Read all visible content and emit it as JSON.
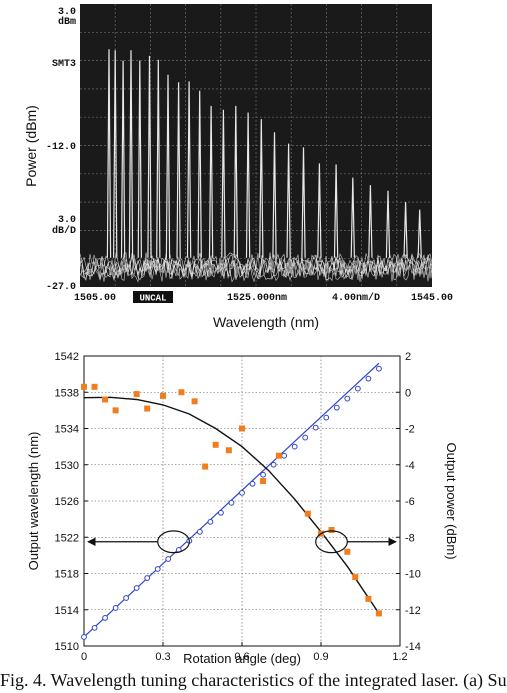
{
  "chart_data": [
    {
      "type": "line",
      "title": "",
      "ylabel": "Power (dBm)",
      "xlabel": "Wavelength (nm)",
      "y_ticks": [
        "dBm",
        "SMT3",
        "-12.0",
        "3.0",
        "dB/D",
        "-27.0"
      ],
      "y_top_label": "3.0",
      "xlim": [
        1505.0,
        1545.0
      ],
      "ylim": [
        -27.0,
        3.0
      ],
      "x_tick_labels": [
        "1505.00",
        "UNCAL",
        "1525.000nm",
        "4.00nm/D",
        "1545.00"
      ],
      "grid": true,
      "background": "#1a1a1a",
      "trace_color": "#e8e8e8",
      "grid_color": "#6a6a6a",
      "noise_floor_dbm": -24.5,
      "series": [
        {
          "values_x": [
            1508.3,
            1509.0,
            1509.9,
            1510.8,
            1511.8,
            1512.9,
            1513.9,
            1515.0,
            1516.2,
            1517.4,
            1518.6,
            1519.9,
            1521.3,
            1522.7,
            1524.1,
            1525.6,
            1527.1,
            1528.7,
            1530.4,
            1532.2,
            1534.1,
            1536.0,
            1538.0,
            1540.0,
            1542.0,
            1543.6
          ],
          "values_y": [
            -1.8,
            -1.9,
            -3.0,
            -1.9,
            -3.0,
            -2.5,
            -2.9,
            -4.5,
            -5.3,
            -5.2,
            -6.2,
            -7.8,
            -8.2,
            -7.8,
            -8.5,
            -9.2,
            -10.6,
            -11.8,
            -12.2,
            -13.9,
            -14.0,
            -15.4,
            -16.2,
            -16.8,
            -18.0,
            -18.8
          ]
        }
      ]
    },
    {
      "type": "scatter",
      "title": "",
      "xlabel": "Rotation angle (deg)",
      "ylabel": "Output wavelength (nm)",
      "y2label": "Output power (dBm)",
      "xlim": [
        0,
        1.2
      ],
      "ylim": [
        1510,
        1542
      ],
      "y2lim": [
        -14,
        2
      ],
      "x_ticks": [
        "0",
        "0.3",
        "0.6",
        "0.9",
        "1.2"
      ],
      "y_ticks": [
        "1510",
        "1514",
        "1518",
        "1522",
        "1526",
        "1530",
        "1534",
        "1538",
        "1542"
      ],
      "y2_ticks": [
        "2",
        "0",
        "-2",
        "-4",
        "-6",
        "-8",
        "-10",
        "-12",
        "-14"
      ],
      "grid": true,
      "wavelength_color": "#2e46c8",
      "power_color": "#f07d1e",
      "fit_color": "#111111",
      "wavelength_points": {
        "x": [
          0,
          0.04,
          0.08,
          0.12,
          0.16,
          0.2,
          0.24,
          0.28,
          0.32,
          0.36,
          0.4,
          0.44,
          0.48,
          0.52,
          0.56,
          0.6,
          0.64,
          0.68,
          0.72,
          0.76,
          0.8,
          0.84,
          0.88,
          0.92,
          0.96,
          1.0,
          1.04,
          1.08,
          1.12
        ],
        "y": [
          1511.0,
          1512.0,
          1513.1,
          1514.2,
          1515.3,
          1516.4,
          1517.5,
          1518.5,
          1519.6,
          1520.6,
          1521.6,
          1522.6,
          1523.7,
          1524.7,
          1525.8,
          1526.9,
          1527.9,
          1528.9,
          1530.0,
          1531.0,
          1532.0,
          1533.0,
          1534.1,
          1535.2,
          1536.3,
          1537.3,
          1538.4,
          1539.5,
          1540.6
        ]
      },
      "wavelength_fit": {
        "x": [
          0,
          1.12
        ],
        "y": [
          1511.0,
          1541.2
        ]
      },
      "power_points": {
        "x": [
          0,
          0.04,
          0.08,
          0.12,
          0.2,
          0.24,
          0.3,
          0.37,
          0.42,
          0.46,
          0.5,
          0.55,
          0.6,
          0.68,
          0.74,
          0.85,
          0.9,
          0.94,
          1.0,
          1.03,
          1.08,
          1.12
        ],
        "y": [
          0.3,
          0.3,
          -0.4,
          -1.0,
          -0.1,
          -0.9,
          -0.2,
          0.0,
          -0.5,
          -4.1,
          -2.9,
          -3.2,
          -2.0,
          -4.9,
          -3.5,
          -6.7,
          -7.8,
          -7.6,
          -8.8,
          -10.2,
          -11.4,
          -12.2
        ]
      },
      "power_fit": {
        "x": [
          0,
          0.1,
          0.2,
          0.3,
          0.4,
          0.5,
          0.6,
          0.7,
          0.8,
          0.9,
          1.0,
          1.12
        ],
        "y": [
          -0.3,
          -0.28,
          -0.4,
          -0.7,
          -1.2,
          -2.0,
          -3.0,
          -4.3,
          -5.9,
          -7.7,
          -9.6,
          -12.2
        ]
      },
      "annotations": [
        {
          "shape": "ellipse",
          "cx": 0.34,
          "cy_left": 1521.5,
          "rx": 0.06,
          "ry_left": 1.2,
          "arrow_to": "left-axis"
        },
        {
          "shape": "ellipse",
          "cx": 0.94,
          "cy_left": 1521.5,
          "rx": 0.06,
          "ry_left": 1.2,
          "arrow_to": "right-axis"
        }
      ]
    }
  ],
  "caption": "Fig. 4. Wavelength tuning characteristics of the integrated laser. (a) Su"
}
